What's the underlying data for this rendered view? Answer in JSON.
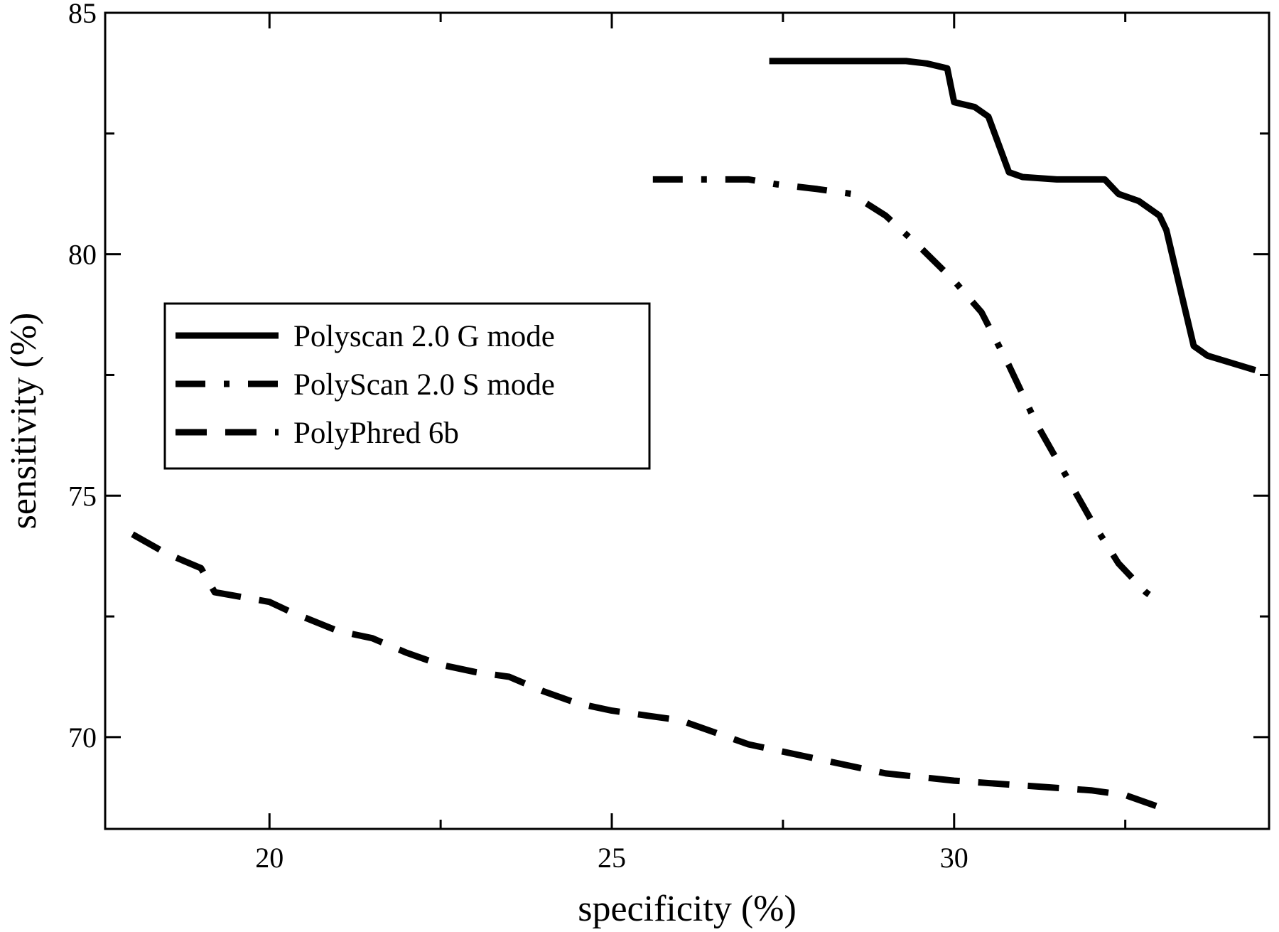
{
  "chart_data": {
    "type": "line",
    "title": "",
    "xlabel": "specificity (%)",
    "ylabel": "sensitivity (%)",
    "xlim": [
      17.6,
      34.6
    ],
    "ylim": [
      68.1,
      85.0
    ],
    "x_ticks": [
      20,
      25,
      30
    ],
    "y_ticks": [
      70,
      75,
      80,
      85
    ],
    "x_minor_ticks": [
      22.5,
      27.5,
      32.5
    ],
    "y_minor_ticks": [
      72.5,
      77.5,
      82.5
    ],
    "grid": false,
    "legend_position": "center-left",
    "series": [
      {
        "name": "Polyscan 2.0 G mode",
        "style": "solid",
        "color": "#000000",
        "x": [
          27.3,
          28.0,
          29.0,
          29.3,
          29.6,
          29.9,
          30.0,
          30.3,
          30.5,
          30.8,
          31.0,
          31.5,
          32.2,
          32.4,
          32.7,
          33.0,
          33.1,
          33.3,
          33.5,
          33.7,
          34.4
        ],
        "y": [
          84.0,
          84.0,
          84.0,
          84.0,
          83.95,
          83.85,
          83.15,
          83.05,
          82.85,
          81.7,
          81.6,
          81.55,
          81.55,
          81.25,
          81.1,
          80.8,
          80.5,
          79.3,
          78.1,
          77.9,
          77.6
        ]
      },
      {
        "name": "PolyScan 2.0 S mode",
        "style": "dash-dot",
        "color": "#000000",
        "x": [
          25.6,
          26.0,
          26.5,
          27.0,
          27.4,
          28.0,
          28.5,
          29.0,
          29.5,
          30.0,
          30.4,
          30.8,
          31.2,
          31.6,
          32.0,
          32.4,
          32.8,
          33.0
        ],
        "y": [
          81.55,
          81.55,
          81.55,
          81.55,
          81.45,
          81.35,
          81.25,
          80.8,
          80.15,
          79.45,
          78.8,
          77.7,
          76.5,
          75.5,
          74.5,
          73.6,
          73.0,
          72.8
        ]
      },
      {
        "name": "PolyPhred 6b",
        "style": "dashed",
        "color": "#000000",
        "x": [
          18.0,
          18.5,
          19.0,
          19.2,
          20.0,
          20.3,
          21.0,
          21.5,
          22.0,
          22.5,
          23.0,
          23.5,
          24.0,
          24.5,
          25.0,
          25.5,
          26.0,
          26.5,
          27.0,
          28.0,
          29.0,
          30.0,
          31.0,
          32.0,
          32.5,
          33.0
        ],
        "y": [
          74.2,
          73.8,
          73.5,
          73.0,
          72.8,
          72.6,
          72.2,
          72.05,
          71.75,
          71.5,
          71.35,
          71.25,
          70.95,
          70.7,
          70.55,
          70.45,
          70.35,
          70.1,
          69.85,
          69.55,
          69.25,
          69.1,
          69.0,
          68.9,
          68.8,
          68.55
        ]
      }
    ]
  }
}
